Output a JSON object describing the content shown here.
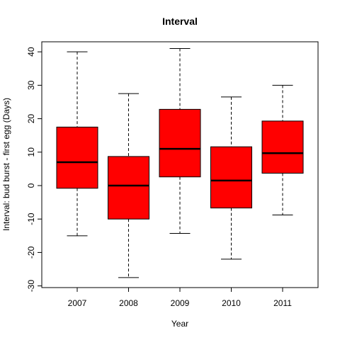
{
  "chart_data": {
    "type": "box",
    "title": "Interval",
    "xlabel": "Year",
    "ylabel": "Interval: bud burst - first egg (Days)",
    "categories": [
      "2007",
      "2008",
      "2009",
      "2010",
      "2011"
    ],
    "boxes": [
      {
        "whisker_low": -15,
        "q1": -0.8,
        "median": 7,
        "q3": 17.5,
        "whisker_high": 40
      },
      {
        "whisker_low": -27.5,
        "q1": -10,
        "median": 0,
        "q3": 8.7,
        "whisker_high": 27.5
      },
      {
        "whisker_low": -14.3,
        "q1": 2.6,
        "median": 11,
        "q3": 22.8,
        "whisker_high": 41
      },
      {
        "whisker_low": -22,
        "q1": -6.7,
        "median": 1.5,
        "q3": 11.6,
        "whisker_high": 26.5
      },
      {
        "whisker_low": -8.8,
        "q1": 3.7,
        "median": 9.7,
        "q3": 19.3,
        "whisker_high": 30
      }
    ],
    "yticks": [
      -30,
      -20,
      -10,
      0,
      10,
      20,
      30,
      40
    ],
    "ylim": [
      -30.5,
      43
    ],
    "grid": false,
    "box_color": "#ff0000",
    "box_border_color": "#000000",
    "median_color": "#000000",
    "whisker_style": "dashed"
  }
}
